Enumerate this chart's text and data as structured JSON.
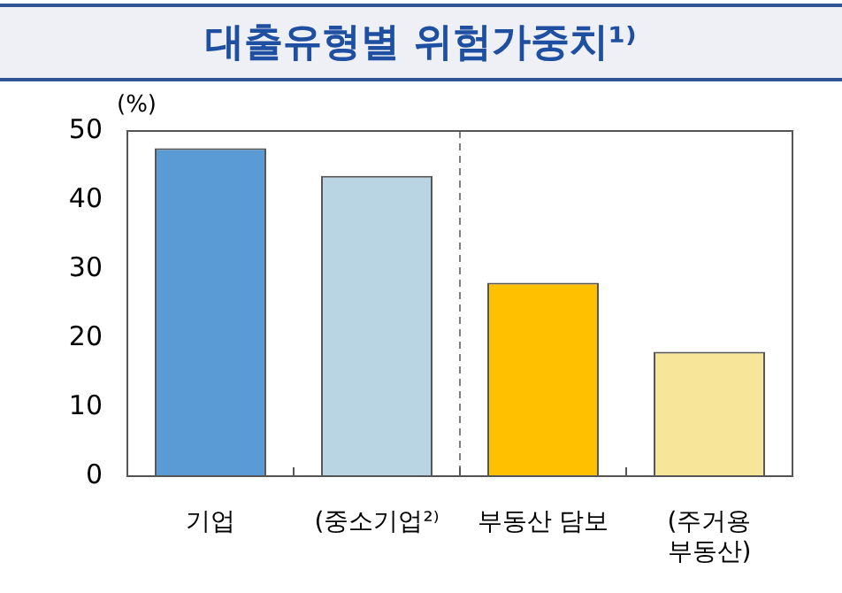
{
  "chart_data": {
    "type": "bar",
    "title": "대출유형별  위험가중치¹⁾",
    "ylabel": "(%)",
    "categories": [
      "기업",
      "(중소기업²⁾",
      "부동산 담보",
      "(주거용 부동산)"
    ],
    "values": [
      47.5,
      43.5,
      28,
      18
    ],
    "colors": [
      "#5b9bd5",
      "#b9d5e4",
      "#ffc000",
      "#f7e59a"
    ],
    "ylim": [
      0,
      50
    ],
    "yticks": [
      0,
      10,
      20,
      30,
      40,
      50
    ],
    "grid": false,
    "legend": false
  }
}
